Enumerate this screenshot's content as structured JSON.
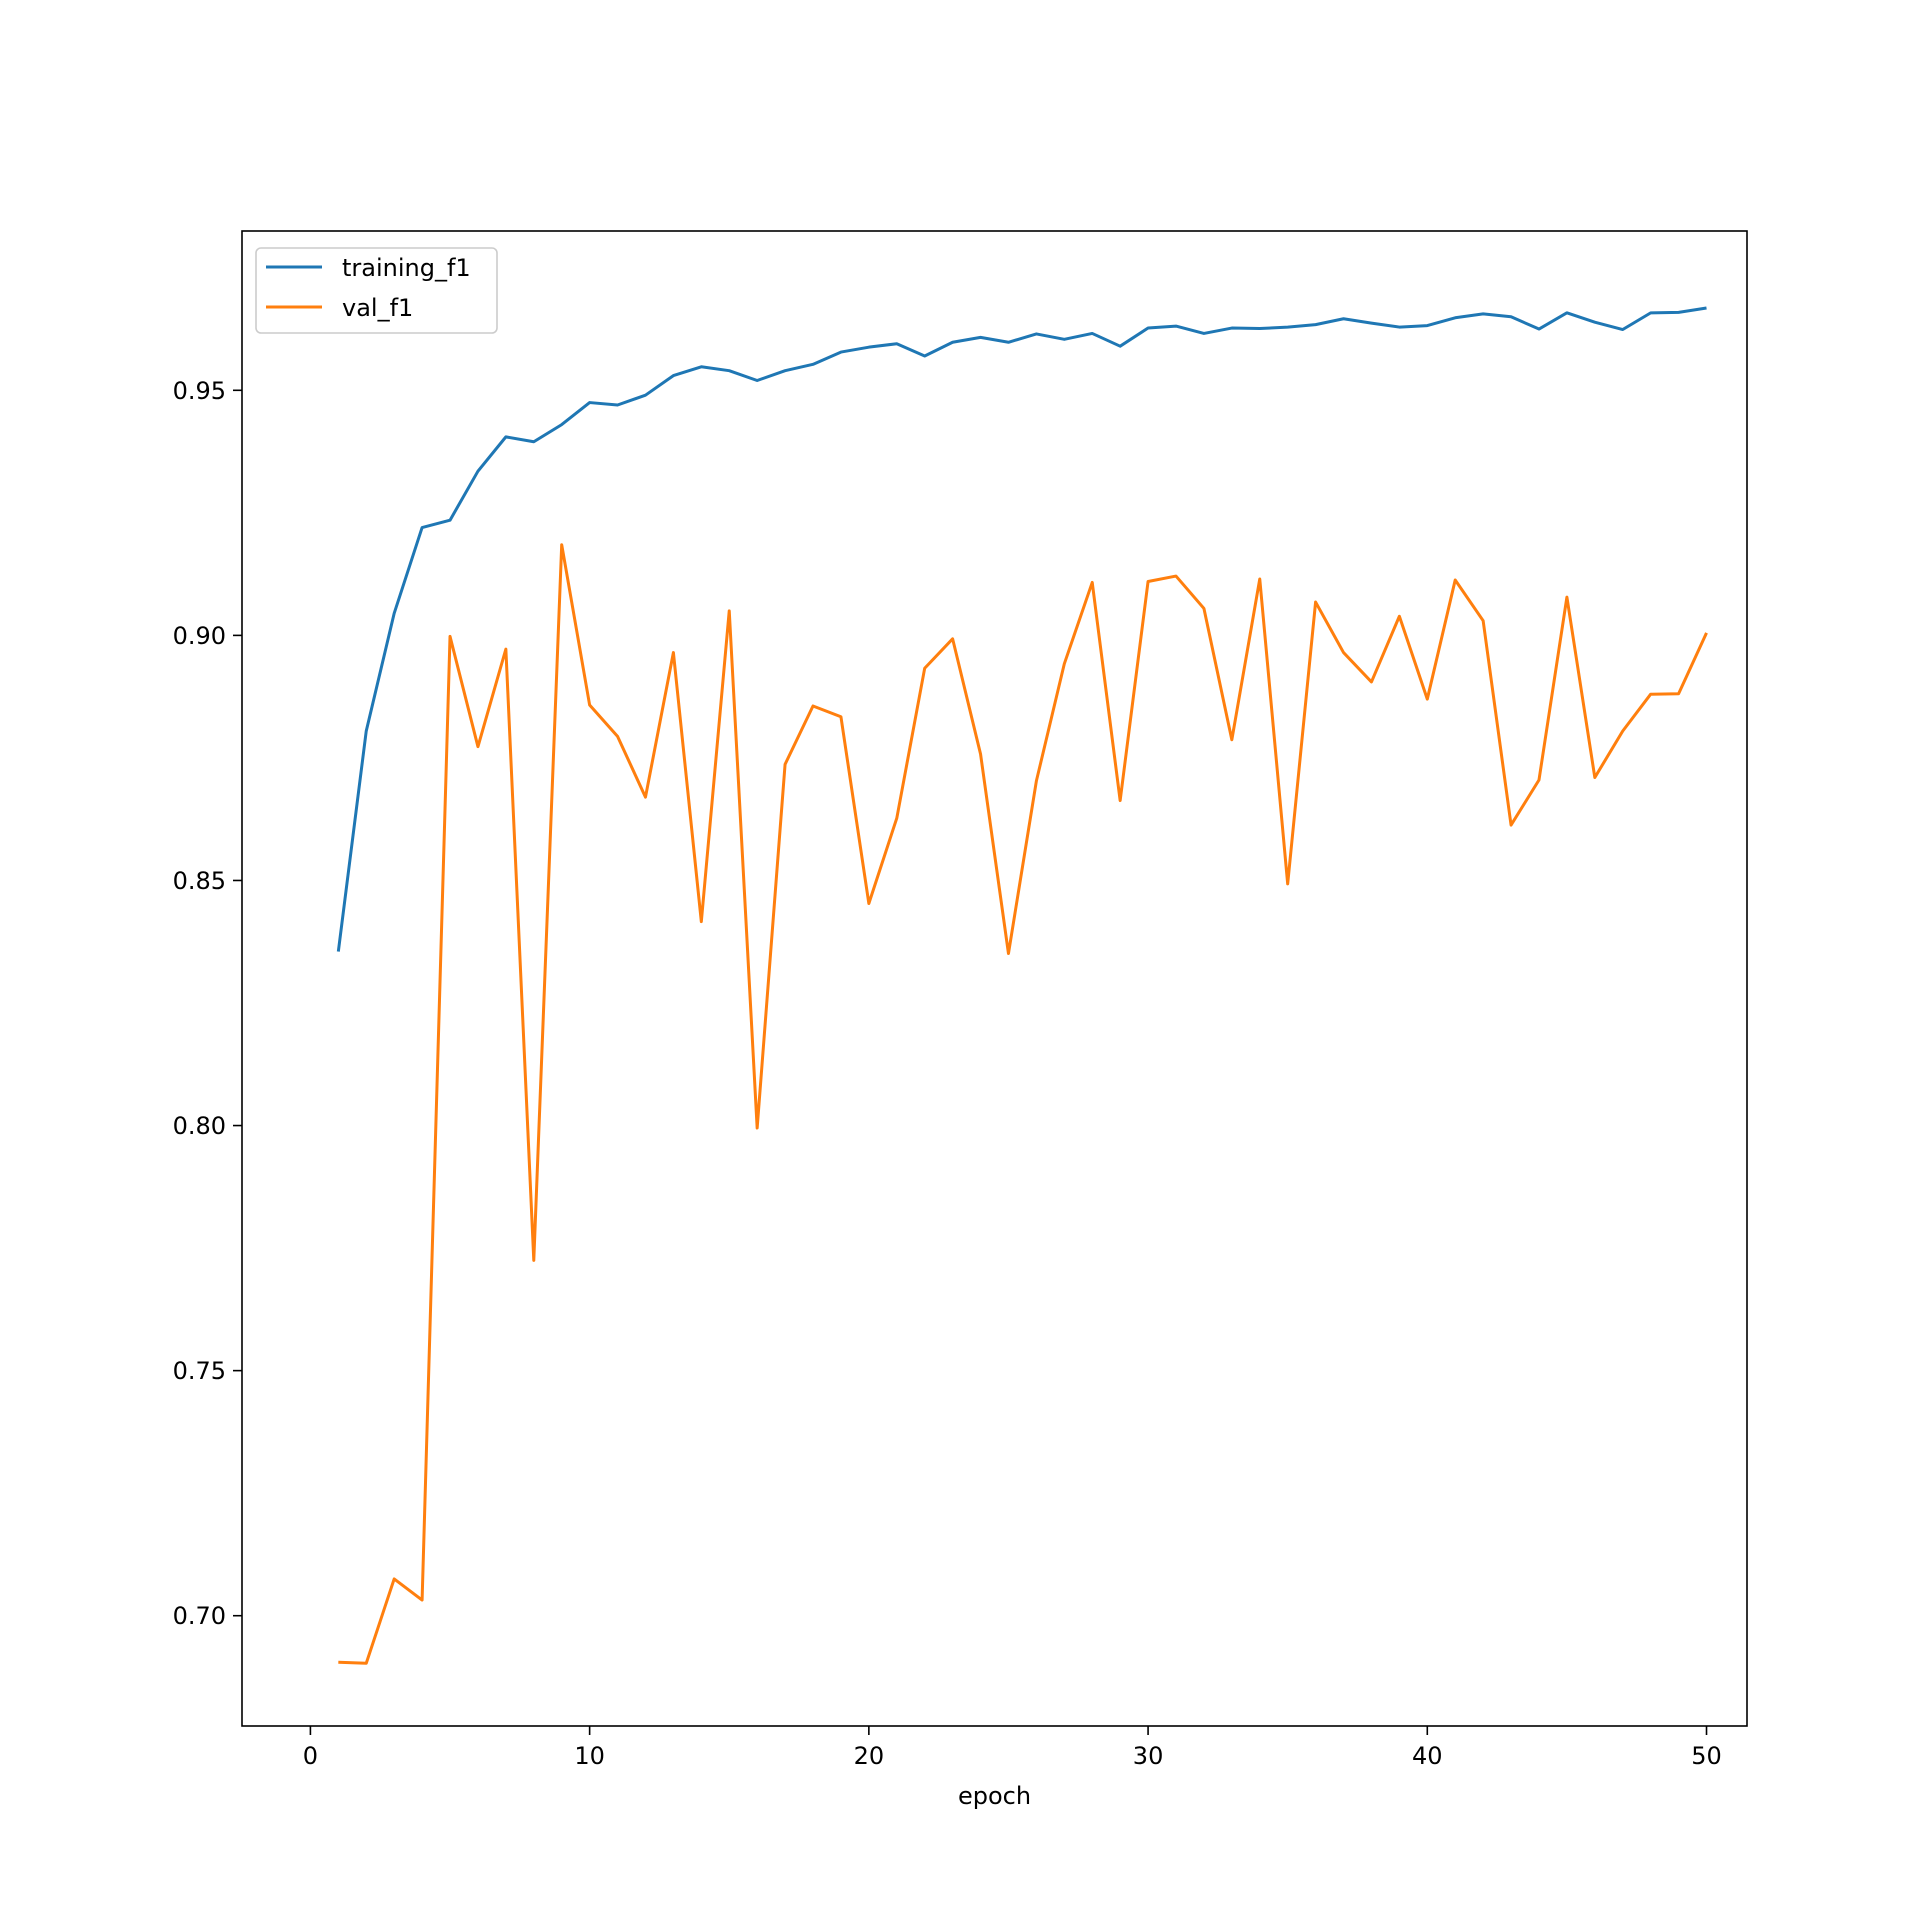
{
  "chart_data": {
    "type": "line",
    "title": "",
    "xlabel": "epoch",
    "ylabel": "",
    "xlim": [
      -2.45,
      51.45
    ],
    "ylim": [
      0.6775,
      0.9825
    ],
    "xticks": [
      0,
      10,
      20,
      30,
      40,
      50
    ],
    "xtick_labels": [
      "0",
      "10",
      "20",
      "30",
      "40",
      "50"
    ],
    "yticks": [
      0.7,
      0.75,
      0.8,
      0.85,
      0.9,
      0.95
    ],
    "ytick_labels": [
      "0.70",
      "0.75",
      "0.80",
      "0.85",
      "0.90",
      "0.95"
    ],
    "grid": false,
    "legend_position": "upper-left",
    "x": [
      1,
      2,
      3,
      4,
      5,
      6,
      7,
      8,
      9,
      10,
      11,
      12,
      13,
      14,
      15,
      16,
      17,
      18,
      19,
      20,
      21,
      22,
      23,
      24,
      25,
      26,
      27,
      28,
      29,
      30,
      31,
      32,
      33,
      34,
      35,
      36,
      37,
      38,
      39,
      40,
      41,
      42,
      43,
      44,
      45,
      46,
      47,
      48,
      49,
      50
    ],
    "series": [
      {
        "name": "training_f1",
        "color": "#1f77b4",
        "values": [
          0.8355,
          0.8805,
          0.9045,
          0.922,
          0.9235,
          0.9335,
          0.9405,
          0.9395,
          0.943,
          0.9475,
          0.947,
          0.949,
          0.953,
          0.9548,
          0.954,
          0.952,
          0.954,
          0.9553,
          0.9578,
          0.9588,
          0.9595,
          0.957,
          0.9598,
          0.9608,
          0.9598,
          0.9615,
          0.9604,
          0.9616,
          0.959,
          0.9627,
          0.9631,
          0.9616,
          0.9627,
          0.9626,
          0.9629,
          0.9634,
          0.9646,
          0.9637,
          0.9629,
          0.9632,
          0.9648,
          0.9656,
          0.965,
          0.9625,
          0.9658,
          0.9639,
          0.9624,
          0.9658,
          0.9659,
          0.9668
        ]
      },
      {
        "name": "val_f1",
        "color": "#ff7f0e",
        "values": [
          0.6905,
          0.6903,
          0.7075,
          0.7032,
          0.8998,
          0.8773,
          0.8972,
          0.7725,
          0.9185,
          0.8858,
          0.8794,
          0.867,
          0.8965,
          0.8416,
          0.905,
          0.7995,
          0.8737,
          0.8856,
          0.8834,
          0.8453,
          0.8627,
          0.8933,
          0.8993,
          0.8758,
          0.8351,
          0.8703,
          0.8942,
          0.9108,
          0.8663,
          0.911,
          0.9121,
          0.9055,
          0.8787,
          0.9115,
          0.8493,
          0.9068,
          0.8965,
          0.8905,
          0.9039,
          0.887,
          0.9113,
          0.903,
          0.8613,
          0.8705,
          0.9078,
          0.871,
          0.8805,
          0.888,
          0.8881,
          0.9005
        ]
      }
    ]
  }
}
